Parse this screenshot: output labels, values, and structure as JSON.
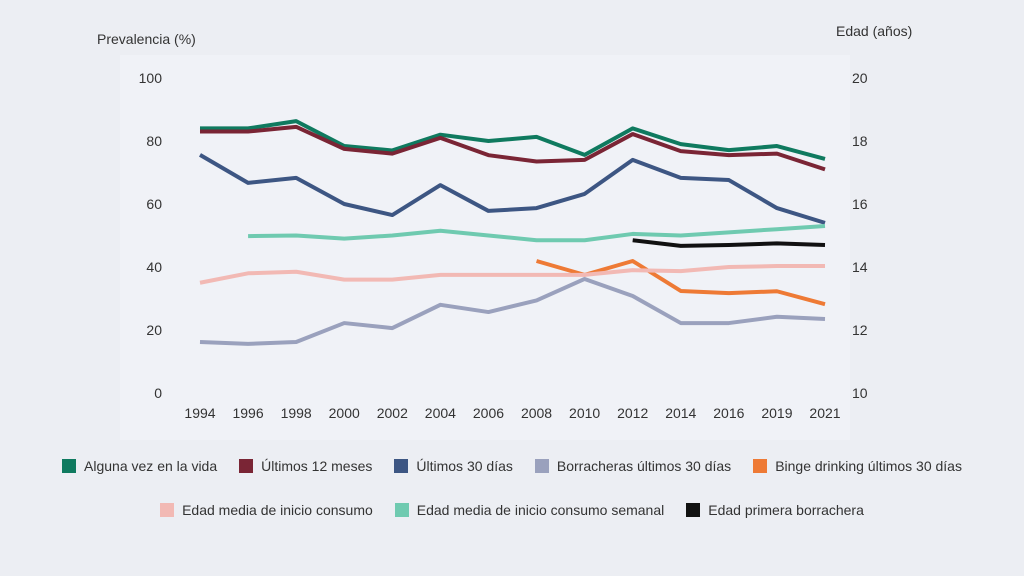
{
  "chart_data": {
    "type": "line",
    "ylabel_left": "Prevalencia (%)",
    "ylabel_right": "Edad (años)",
    "ylim_left": [
      0,
      100
    ],
    "ylim_right": [
      10,
      20
    ],
    "yticks_left": [
      "0",
      "20",
      "40",
      "60",
      "80",
      "100"
    ],
    "yticks_right": [
      "10",
      "12",
      "14",
      "16",
      "18",
      "20"
    ],
    "categories": [
      "1994",
      "1996",
      "1998",
      "2000",
      "2002",
      "2004",
      "2006",
      "2008",
      "2010",
      "2012",
      "2014",
      "2016",
      "2019",
      "2021"
    ],
    "grid": false,
    "legend_placement": "bottom",
    "series": [
      {
        "name": "Alguna vez en la vida",
        "axis": "left",
        "color": "#0f7a5f",
        "values": [
          84,
          84,
          86.3,
          78.4,
          77,
          82,
          80,
          81.3,
          75.6,
          84,
          79,
          77.1,
          78.4,
          74.3
        ]
      },
      {
        "name": "Últimos 12 meses",
        "axis": "left",
        "color": "#7a2535",
        "values": [
          83,
          83,
          84.5,
          77.5,
          76,
          81,
          75.5,
          73.5,
          74,
          82.2,
          76.8,
          75.5,
          76,
          71
        ]
      },
      {
        "name": "Últimos 30 días",
        "axis": "left",
        "color": "#3d5683",
        "values": [
          75.6,
          66.7,
          68.3,
          60,
          56.5,
          66,
          57.8,
          58.7,
          63.2,
          74,
          68.3,
          67.6,
          58.7,
          54
        ]
      },
      {
        "name": "Borracheras últimos 30 días",
        "axis": "left",
        "color": "#9aa1bd",
        "values": [
          16.2,
          15.6,
          16.2,
          22.2,
          20.6,
          28,
          25.7,
          29.4,
          36.2,
          30.8,
          22.2,
          22.2,
          24.2,
          23.5
        ]
      },
      {
        "name": "Binge drinking últimos 30 días",
        "axis": "left",
        "color": "#ee7a35",
        "values": [
          null,
          null,
          null,
          null,
          null,
          null,
          null,
          41.9,
          37.5,
          41.9,
          32.4,
          31.7,
          32.3,
          28.2
        ]
      },
      {
        "name": "Edad media de inicio consumo",
        "axis": "right",
        "color": "#f2b9b4",
        "values": [
          13.5,
          13.8,
          13.85,
          13.6,
          13.6,
          13.75,
          13.75,
          13.75,
          13.75,
          13.9,
          13.87,
          14,
          14.03,
          14.03
        ]
      },
      {
        "name": "Edad media de inicio consumo semanal",
        "axis": "right",
        "color": "#6fcab0",
        "values": [
          null,
          14.98,
          15,
          14.9,
          15,
          15.15,
          15,
          14.85,
          14.85,
          15.05,
          15,
          15.1,
          15.2,
          15.3
        ]
      },
      {
        "name": "Edad primera borrachera",
        "axis": "right",
        "color": "#111111",
        "values": [
          null,
          null,
          null,
          null,
          null,
          null,
          null,
          null,
          null,
          14.85,
          14.67,
          14.7,
          14.75,
          14.7
        ]
      }
    ]
  }
}
